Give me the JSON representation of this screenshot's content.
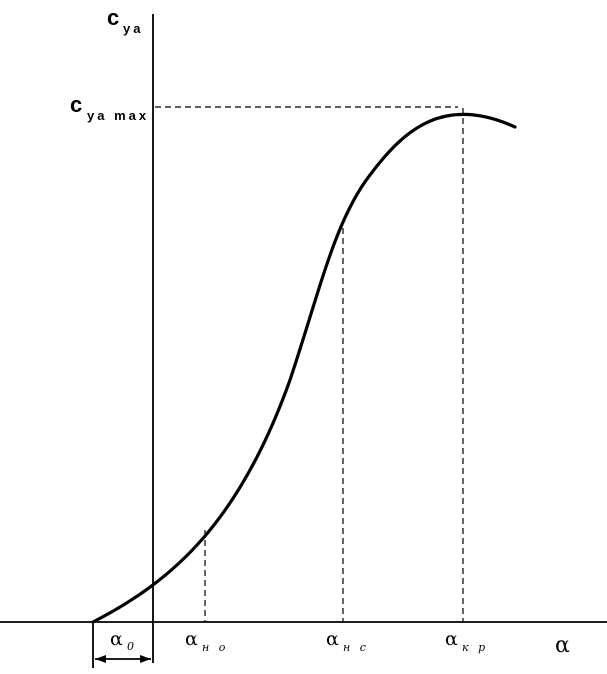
{
  "diagram": {
    "y_axis_label": {
      "main": "c",
      "sub": "ya"
    },
    "y_max_label": {
      "main": "c",
      "sub": "ya max"
    },
    "x_axis_label": "α",
    "markers": [
      {
        "id": "alpha-0",
        "main": "α",
        "sub": "0"
      },
      {
        "id": "alpha-no",
        "main": "α",
        "sub": "н о"
      },
      {
        "id": "alpha-nc",
        "main": "α",
        "sub": "н с"
      },
      {
        "id": "alpha-kr",
        "main": "α",
        "sub": "к р"
      }
    ]
  }
}
